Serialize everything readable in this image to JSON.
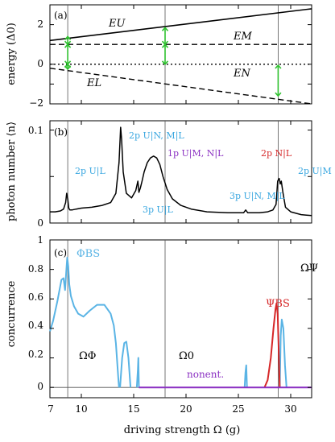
{
  "panels": {
    "a": {
      "tag": "(a)",
      "ylabel": "energy (Δ0)",
      "yticks": [
        "2",
        "0",
        "−2"
      ],
      "labels": {
        "EU": "EU",
        "EM": "EM",
        "EN": "EN",
        "EL": "EL"
      }
    },
    "b": {
      "tag": "(b)",
      "ylabel": "photon number ⟨n⟩",
      "yticks": [
        "0.1",
        "0"
      ],
      "annotations": [
        {
          "text": "2p U|L",
          "color": "#3aa7e0"
        },
        {
          "text": "2p U|N, M|L",
          "color": "#3aa7e0"
        },
        {
          "text": "1p U|M, N|L",
          "color": "#8a2fc2"
        },
        {
          "text": "3p U|L",
          "color": "#3aa7e0"
        },
        {
          "text": "3p U|N, M|L",
          "color": "#3aa7e0"
        },
        {
          "text": "2p N|L",
          "color": "#d62728"
        },
        {
          "text": "2p U|M",
          "color": "#3aa7e0"
        }
      ]
    },
    "c": {
      "tag": "(c)",
      "ylabel": "concurrence",
      "xlabel": "driving strength Ω (g)",
      "yticks": [
        "1",
        "0.8",
        "0.6",
        "0.4",
        "0.2",
        "0"
      ],
      "xticks": [
        "7",
        "10",
        "15",
        "20",
        "25",
        "30"
      ],
      "labels": {
        "phiBS": "ΦBS",
        "psiBS": "ΨBS",
        "nonent": "nonent.",
        "omegaPhi": "ΩΦ",
        "omega0": "Ω0",
        "omegaPsi": "ΩΨ"
      }
    }
  },
  "colors": {
    "blue": "#5ab4e5",
    "red": "#d62728",
    "purple": "#8a2fc2",
    "green": "#2fc12f"
  },
  "chart_data": [
    {
      "type": "line",
      "panel": "a",
      "xlim": [
        7,
        32
      ],
      "ylim": [
        -2,
        3
      ],
      "vlines": [
        8.7,
        18.0,
        28.8
      ],
      "series": [
        {
          "name": "EU",
          "x": [
            7,
            32
          ],
          "y": [
            1.2,
            2.8
          ],
          "style": "solid"
        },
        {
          "name": "EM",
          "x": [
            7,
            32
          ],
          "y": [
            1.0,
            1.0
          ],
          "style": "dashed"
        },
        {
          "name": "EN",
          "x": [
            7,
            32
          ],
          "y": [
            0,
            0
          ],
          "style": "dotted"
        },
        {
          "name": "EL",
          "x": [
            7,
            32
          ],
          "y": [
            -0.2,
            -2.0
          ],
          "style": "dashed"
        }
      ],
      "arrows": [
        {
          "x": 8.7,
          "y": [
            1.0,
            1.4
          ]
        },
        {
          "x": 8.7,
          "y": [
            0.0,
            1.0
          ]
        },
        {
          "x": 8.7,
          "y": [
            -0.25,
            0.0
          ]
        },
        {
          "x": 18.0,
          "y": [
            1.0,
            1.85
          ]
        },
        {
          "x": 18.0,
          "y": [
            0.0,
            1.0
          ]
        },
        {
          "x": 28.8,
          "y": [
            -0.05,
            -1.6
          ]
        }
      ]
    },
    {
      "type": "line",
      "panel": "b",
      "xlim": [
        7,
        32
      ],
      "ylim": [
        0,
        0.11
      ],
      "vlines": [
        8.7,
        18.0,
        28.8
      ],
      "x": [
        7,
        7.5,
        8.0,
        8.3,
        8.5,
        8.6,
        8.7,
        8.8,
        8.9,
        9.1,
        9.5,
        10,
        11,
        12,
        12.8,
        13.3,
        13.6,
        13.75,
        13.85,
        14.0,
        14.3,
        14.8,
        15.2,
        15.4,
        15.5,
        15.65,
        15.8,
        16.0,
        16.3,
        16.6,
        16.9,
        17.2,
        17.5,
        17.8,
        18.2,
        18.7,
        19.5,
        20.5,
        22,
        24,
        25.5,
        25.7,
        25.9,
        26.3,
        27.0,
        27.8,
        28.3,
        28.6,
        28.75,
        28.9,
        29.0,
        29.1,
        29.25,
        29.5,
        30,
        31,
        32
      ],
      "y": [
        0.012,
        0.012,
        0.013,
        0.015,
        0.022,
        0.032,
        0.026,
        0.016,
        0.014,
        0.014,
        0.015,
        0.016,
        0.017,
        0.019,
        0.022,
        0.032,
        0.065,
        0.103,
        0.09,
        0.055,
        0.032,
        0.027,
        0.035,
        0.045,
        0.033,
        0.038,
        0.045,
        0.055,
        0.065,
        0.07,
        0.072,
        0.07,
        0.063,
        0.05,
        0.036,
        0.026,
        0.019,
        0.015,
        0.012,
        0.011,
        0.011,
        0.014,
        0.011,
        0.011,
        0.011,
        0.012,
        0.014,
        0.02,
        0.045,
        0.048,
        0.042,
        0.045,
        0.033,
        0.017,
        0.012,
        0.009,
        0.008
      ]
    },
    {
      "type": "line",
      "panel": "c",
      "xlim": [
        7,
        32
      ],
      "ylim": [
        -0.07,
        1.0
      ],
      "vlines": [
        8.7,
        18.0,
        28.8
      ],
      "series": [
        {
          "name": "ΦBS",
          "color": "#5ab4e5",
          "segments": [
            {
              "x": [
                7.0,
                7.3,
                7.7,
                8.1,
                8.3,
                8.45,
                8.55,
                8.65,
                8.75,
                8.85,
                9.0,
                9.3,
                9.7,
                10.2,
                10.8,
                11.5,
                12.2,
                12.8,
                13.1,
                13.3,
                13.45,
                13.55,
                13.6
              ],
              "y": [
                0.38,
                0.45,
                0.58,
                0.73,
                0.74,
                0.66,
                0.78,
                0.88,
                0.82,
                0.7,
                0.62,
                0.55,
                0.5,
                0.48,
                0.52,
                0.56,
                0.56,
                0.5,
                0.42,
                0.3,
                0.15,
                0.04,
                0.0
              ]
            },
            {
              "x": [
                13.7,
                13.9,
                14.1,
                14.3,
                14.5,
                14.7
              ],
              "y": [
                0.0,
                0.2,
                0.3,
                0.31,
                0.2,
                0.0
              ]
            },
            {
              "x": [
                15.3,
                15.4,
                15.45,
                15.5
              ],
              "y": [
                0.0,
                0.12,
                0.2,
                0.0
              ]
            },
            {
              "x": [
                25.6,
                25.68,
                25.75,
                25.82
              ],
              "y": [
                0.0,
                0.1,
                0.15,
                0.0
              ]
            },
            {
              "x": [
                28.95,
                29.05,
                29.15,
                29.3,
                29.45,
                29.6
              ],
              "y": [
                0.0,
                0.35,
                0.46,
                0.4,
                0.15,
                0.0
              ]
            }
          ]
        },
        {
          "name": "ΨBS",
          "color": "#d62728",
          "segments": [
            {
              "x": [
                27.5,
                27.8,
                28.1,
                28.35,
                28.55,
                28.65,
                28.75,
                28.85,
                28.95
              ],
              "y": [
                0.0,
                0.05,
                0.2,
                0.4,
                0.53,
                0.57,
                0.5,
                0.25,
                0.0
              ]
            }
          ]
        },
        {
          "name": "nonent.",
          "color": "#8a2fc2",
          "segments": [
            {
              "x": [
                15.5,
                32.0
              ],
              "y": [
                0.0,
                0.0
              ]
            }
          ]
        }
      ]
    }
  ]
}
